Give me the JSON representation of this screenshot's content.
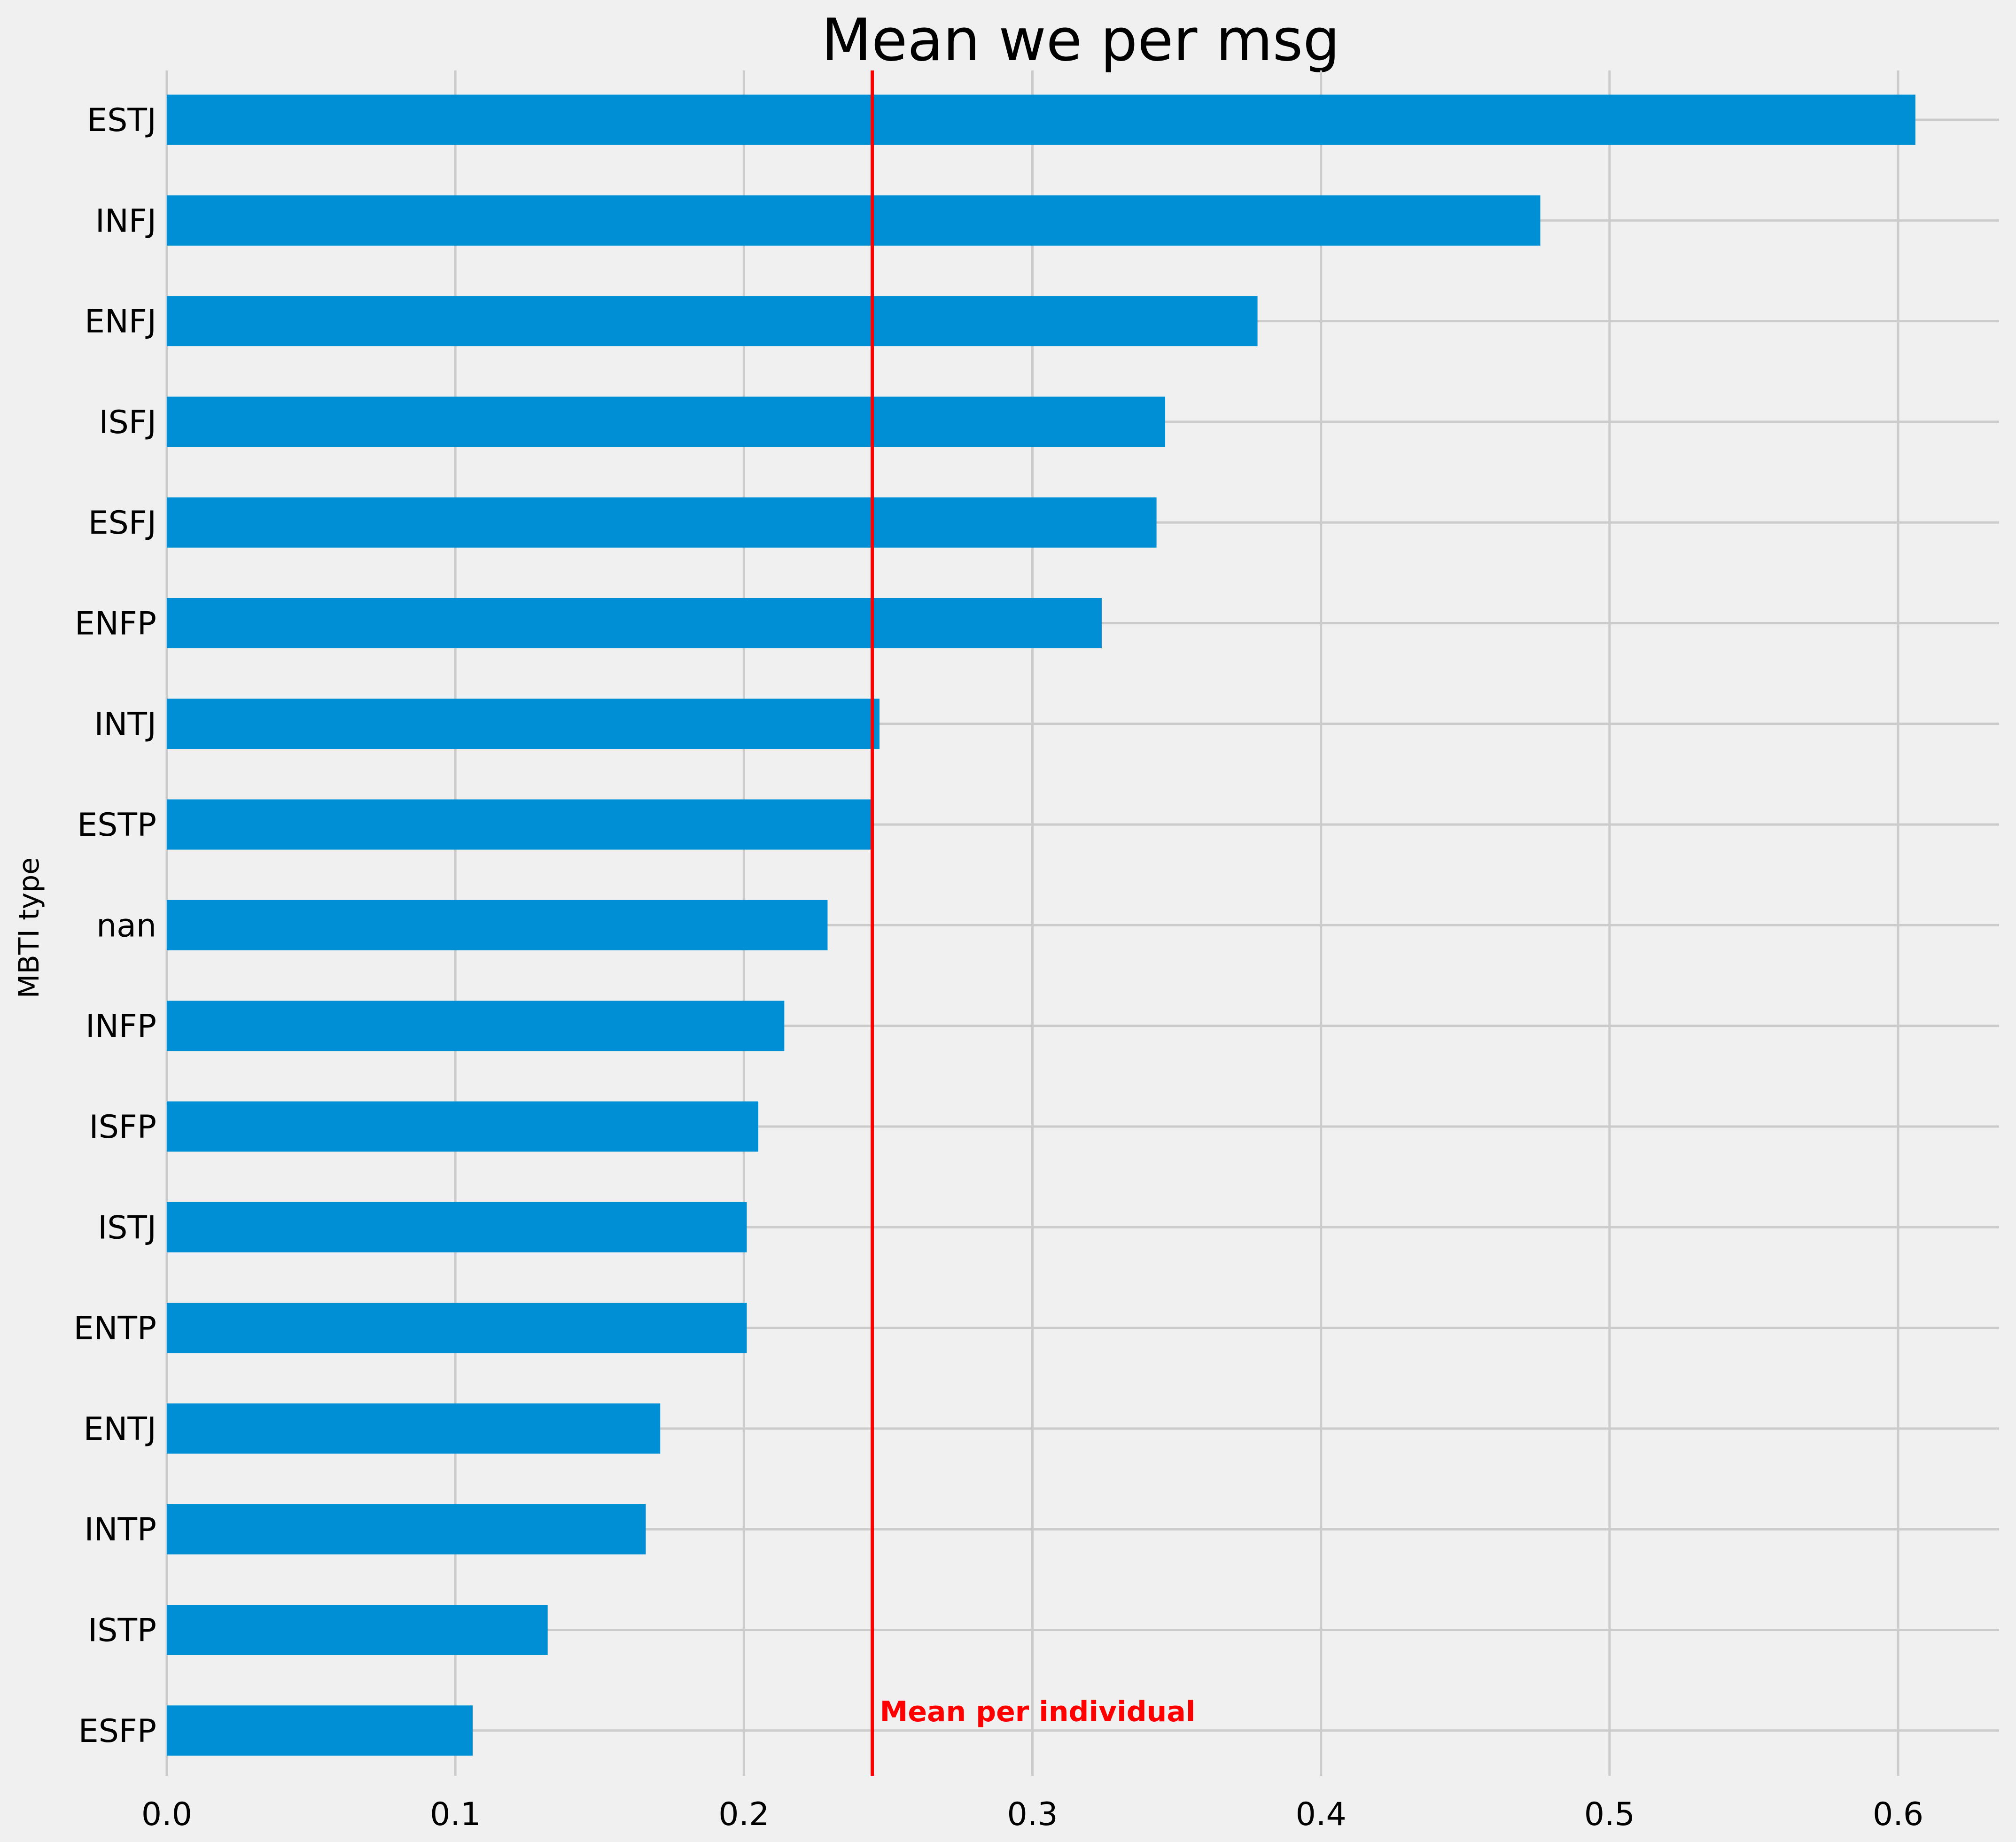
{
  "chart_data": {
    "type": "bar",
    "orientation": "horizontal",
    "title": "Mean we per msg",
    "xlabel": "",
    "ylabel": "MBTI type",
    "categories": [
      "ESTJ",
      "INFJ",
      "ENFJ",
      "ISFJ",
      "ESFJ",
      "ENFP",
      "INTJ",
      "ESTP",
      "nan",
      "INFP",
      "ISFP",
      "ISTJ",
      "ENTP",
      "ENTJ",
      "INTP",
      "ISTP",
      "ESFP"
    ],
    "values": [
      0.606,
      0.476,
      0.378,
      0.346,
      0.343,
      0.324,
      0.247,
      0.244,
      0.229,
      0.214,
      0.205,
      0.201,
      0.201,
      0.171,
      0.166,
      0.132,
      0.106
    ],
    "xlim": [
      0,
      0.635
    ],
    "xticks": [
      0.0,
      0.1,
      0.2,
      0.3,
      0.4,
      0.5,
      0.6
    ],
    "xtick_labels": [
      "0.0",
      "0.1",
      "0.2",
      "0.3",
      "0.4",
      "0.5",
      "0.6"
    ],
    "grid": true,
    "reference_line": {
      "x": 0.2445,
      "label": "Mean per individual",
      "color": "#ff0000"
    },
    "colors": {
      "bar": "#008fd5",
      "background": "#f0f0f0",
      "grid": "#cbcbcb",
      "reference": "#ff0000"
    }
  }
}
